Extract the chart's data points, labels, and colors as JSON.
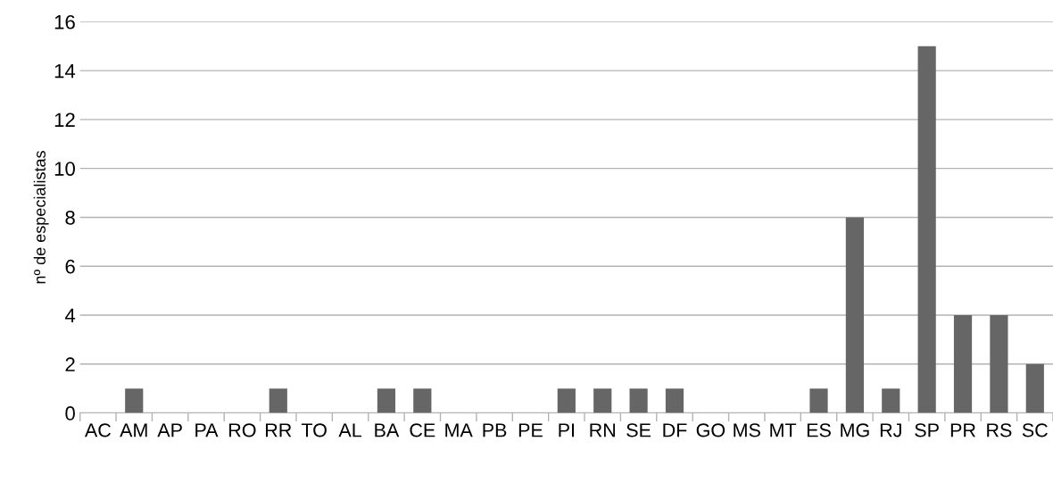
{
  "chart_data": {
    "type": "bar",
    "ylabel": "nº de especialistas",
    "categories": [
      "AC",
      "AM",
      "AP",
      "PA",
      "RO",
      "RR",
      "TO",
      "AL",
      "BA",
      "CE",
      "MA",
      "PB",
      "PE",
      "PI",
      "RN",
      "SE",
      "DF",
      "GO",
      "MS",
      "MT",
      "ES",
      "MG",
      "RJ",
      "SP",
      "PR",
      "RS",
      "SC"
    ],
    "values": [
      0,
      1,
      0,
      0,
      0,
      1,
      0,
      0,
      1,
      1,
      0,
      0,
      0,
      1,
      1,
      1,
      1,
      0,
      0,
      0,
      1,
      8,
      1,
      15,
      4,
      4,
      2
    ],
    "color": "#666666",
    "ylim": [
      0,
      16
    ],
    "yticks": [
      0,
      2,
      4,
      6,
      8,
      10,
      12,
      14,
      16
    ],
    "grid": "y"
  }
}
